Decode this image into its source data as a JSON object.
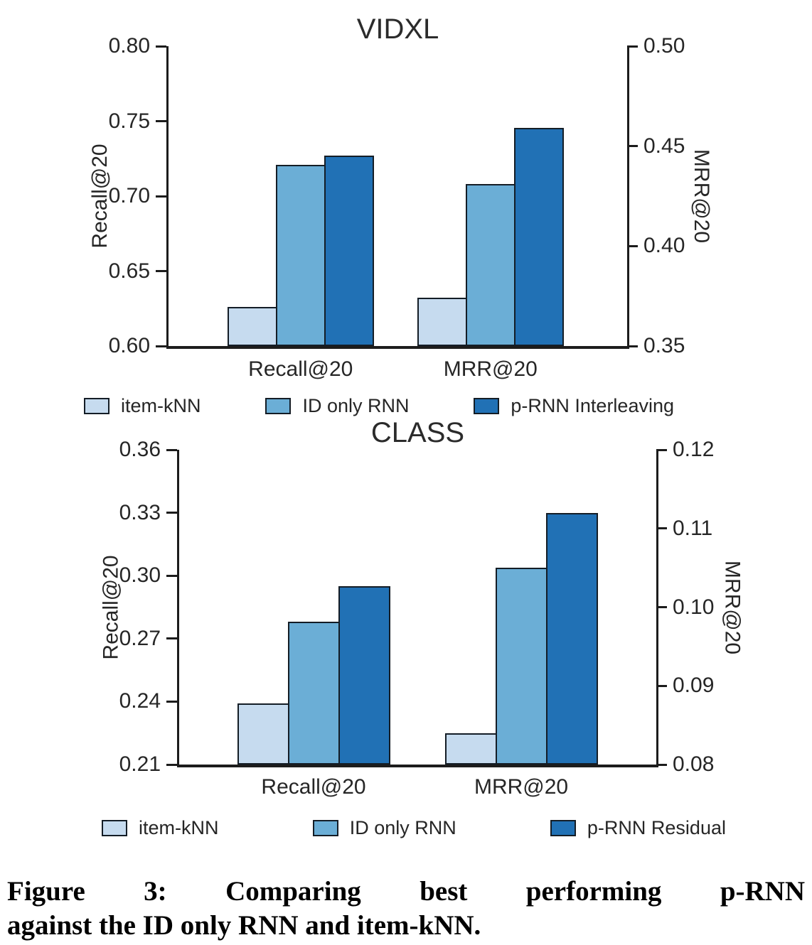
{
  "figure": {
    "caption_line1": "Figure 3: Comparing best performing p-RNN",
    "caption_line2": "against the ID only RNN and item-kNN."
  },
  "style": {
    "axis_color": "#1c1c1c",
    "text_color": "#262626",
    "bar_edge_color": "#141d26",
    "series_colors": [
      "#C6DBEF",
      "#6BAED6",
      "#2171B5"
    ]
  },
  "chart_data": [
    {
      "type": "bar",
      "title": "VIDXL",
      "categories": [
        "Recall@20",
        "MRR@20"
      ],
      "category_axis": [
        "left",
        "right"
      ],
      "grid": "off",
      "legend_position": "below",
      "left_axis": {
        "label": "Recall@20",
        "min": 0.6,
        "max": 0.8,
        "ticks": [
          "0.80",
          "0.75",
          "0.70",
          "0.65",
          "0.60"
        ]
      },
      "right_axis": {
        "label": "MRR@20",
        "min": 0.35,
        "max": 0.5,
        "ticks": [
          "0.50",
          "0.45",
          "0.40",
          "0.35"
        ]
      },
      "series": [
        {
          "name": "item-kNN",
          "color": "#C6DBEF",
          "values": [
            0.626,
            0.374
          ]
        },
        {
          "name": "ID only RNN",
          "color": "#6BAED6",
          "values": [
            0.721,
            0.431
          ]
        },
        {
          "name": "p-RNN Interleaving",
          "color": "#2171B5",
          "values": [
            0.727,
            0.459
          ]
        }
      ]
    },
    {
      "type": "bar",
      "title": "CLASS",
      "categories": [
        "Recall@20",
        "MRR@20"
      ],
      "category_axis": [
        "left",
        "right"
      ],
      "grid": "off",
      "legend_position": "below",
      "left_axis": {
        "label": "Recall@20",
        "min": 0.21,
        "max": 0.36,
        "ticks": [
          "0.36",
          "0.33",
          "0.30",
          "0.27",
          "0.24",
          "0.21"
        ]
      },
      "right_axis": {
        "label": "MRR@20",
        "min": 0.08,
        "max": 0.12,
        "ticks": [
          "0.12",
          "0.11",
          "0.10",
          "0.09",
          "0.08"
        ]
      },
      "series": [
        {
          "name": "item-kNN",
          "color": "#C6DBEF",
          "values": [
            0.239,
            0.084
          ]
        },
        {
          "name": "ID only RNN",
          "color": "#6BAED6",
          "values": [
            0.278,
            0.105
          ]
        },
        {
          "name": "p-RNN Residual",
          "color": "#2171B5",
          "values": [
            0.295,
            0.112
          ]
        }
      ]
    }
  ]
}
